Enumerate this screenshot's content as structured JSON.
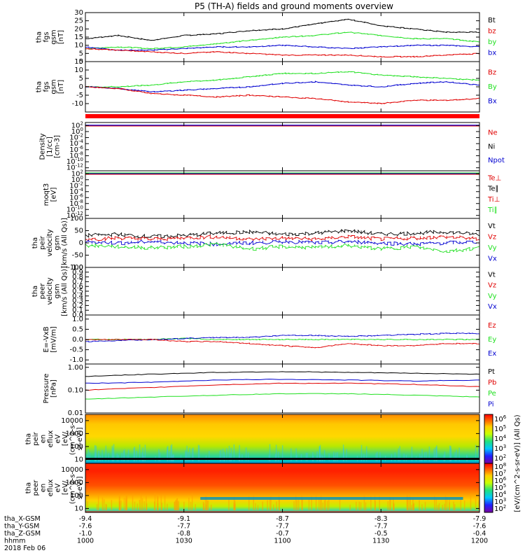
{
  "title": "P5 (TH-A) fields and ground moments overview",
  "chart_data": {
    "type": "line",
    "panels": [
      {
        "id": "fgs_mag",
        "ylabel": [
          "tha",
          "fgs",
          "gsm",
          "[nT]"
        ],
        "ylim": [
          0,
          30
        ],
        "yticks": [
          "0",
          "5",
          "10",
          "15",
          "20",
          "25",
          "30"
        ],
        "legend": [
          {
            "name": "Bt",
            "color": "#000000"
          },
          {
            "name": "bz",
            "color": "#e00000"
          },
          {
            "name": "by",
            "color": "#20e020"
          },
          {
            "name": "bx",
            "color": "#0000d0"
          }
        ],
        "series": [
          {
            "name": "Bt",
            "color": "#000000",
            "x": [
              1000,
              1010,
              1020,
              1030,
              1040,
              1050,
              1100,
              1110,
              1120,
              1130,
              1140,
              1150,
              1200
            ],
            "values": [
              14,
              16,
              13,
              16,
              17,
              19,
              20,
              23,
              26,
              22,
              20,
              18,
              18
            ]
          },
          {
            "name": "by",
            "color": "#20e020",
            "x": [
              1000,
              1010,
              1020,
              1030,
              1040,
              1050,
              1100,
              1110,
              1120,
              1130,
              1140,
              1150,
              1200
            ],
            "values": [
              8,
              9,
              8,
              9,
              11,
              13,
              15,
              16,
              18,
              16,
              14,
              14,
              12
            ]
          },
          {
            "name": "bx",
            "color": "#0000d0",
            "x": [
              1000,
              1010,
              1020,
              1030,
              1040,
              1050,
              1100,
              1110,
              1120,
              1130,
              1140,
              1150,
              1200
            ],
            "values": [
              9,
              7,
              7,
              8,
              9,
              9,
              10,
              9,
              8,
              9,
              10,
              10,
              9
            ]
          },
          {
            "name": "bz",
            "color": "#e00000",
            "x": [
              1000,
              1010,
              1020,
              1030,
              1040,
              1050,
              1100,
              1110,
              1120,
              1130,
              1140,
              1150,
              1200
            ],
            "values": [
              8,
              7,
              6,
              5,
              6,
              5,
              4,
              4,
              4,
              3,
              3,
              4,
              5
            ]
          }
        ]
      },
      {
        "id": "fgs_gsm",
        "ylabel": [
          "tha",
          "fgs",
          "gsm",
          "[nT]"
        ],
        "ylim": [
          -15,
          15
        ],
        "yticks": [
          "-10",
          "-5",
          "0",
          "5",
          "10",
          "15"
        ],
        "legend": [
          {
            "name": "Bz",
            "color": "#e00000"
          },
          {
            "name": "By",
            "color": "#20e020"
          },
          {
            "name": "Bx",
            "color": "#0000d0"
          }
        ],
        "series": [
          {
            "name": "By",
            "color": "#20e020",
            "x": [
              1000,
              1010,
              1020,
              1030,
              1040,
              1050,
              1100,
              1110,
              1120,
              1130,
              1140,
              1150,
              1200
            ],
            "values": [
              0,
              0,
              1,
              3,
              4,
              6,
              8,
              8,
              9,
              7,
              6,
              5,
              4
            ]
          },
          {
            "name": "Bx",
            "color": "#0000d0",
            "x": [
              1000,
              1010,
              1020,
              1030,
              1040,
              1050,
              1100,
              1110,
              1120,
              1130,
              1140,
              1150,
              1200
            ],
            "values": [
              0,
              -1,
              -3,
              -2,
              -1,
              0,
              2,
              3,
              1,
              0,
              2,
              3,
              1
            ]
          },
          {
            "name": "Bz",
            "color": "#e00000",
            "x": [
              1000,
              1010,
              1020,
              1030,
              1040,
              1050,
              1100,
              1110,
              1120,
              1130,
              1140,
              1150,
              1200
            ],
            "values": [
              0,
              -1,
              -4,
              -5,
              -6,
              -5,
              -6,
              -7,
              -9,
              -10,
              -8,
              -8,
              -7
            ]
          }
        ]
      },
      {
        "id": "density",
        "ylabel": [
          "Density",
          "[1/cc]",
          "[cm-3]"
        ],
        "log": true,
        "ylim": [
          1e-13,
          1000.0
        ],
        "yticks": [
          "10^2",
          "10^0",
          "10^-2",
          "10^-4",
          "10^-6",
          "10^-8",
          "10^-10",
          "10^-12"
        ],
        "legend": [
          {
            "name": "Ne",
            "color": "#e00000"
          },
          {
            "name": "Ni",
            "color": "#000000"
          },
          {
            "name": "Npot",
            "color": "#0000d0"
          }
        ]
      },
      {
        "id": "temperature",
        "ylabel": [
          "moqt3",
          "[eV]"
        ],
        "log": true,
        "ylim": [
          1e-13,
          1000.0
        ],
        "yticks": [
          "10^2",
          "10^0",
          "10^-2",
          "10^-4",
          "10^-6",
          "10^-8",
          "10^-10",
          "10^-12"
        ],
        "legend": [
          {
            "name": "Te⊥",
            "color": "#e00000"
          },
          {
            "name": "Te∥",
            "color": "#000000"
          },
          {
            "name": "Ti⊥",
            "color": "#e00000"
          },
          {
            "name": "Ti∥",
            "color": "#20e020"
          }
        ]
      },
      {
        "id": "peir_velocity",
        "ylabel": [
          "tha",
          "peir",
          "velocity",
          "gsm",
          "[km/s (All Qs)]"
        ],
        "ylim": [
          -100,
          100
        ],
        "yticks": [
          "-100",
          "-50",
          "0",
          "50",
          "100"
        ],
        "legend": [
          {
            "name": "Vt",
            "color": "#000000"
          },
          {
            "name": "Vz",
            "color": "#e00000"
          },
          {
            "name": "Vy",
            "color": "#20e020"
          },
          {
            "name": "Vx",
            "color": "#0000d0"
          }
        ],
        "series": [
          {
            "name": "Vt",
            "color": "#000000",
            "x": [
              1000,
              1010,
              1020,
              1030,
              1040,
              1050,
              1100,
              1110,
              1120,
              1130,
              1140,
              1150,
              1200
            ],
            "values": [
              30,
              35,
              25,
              30,
              40,
              45,
              35,
              40,
              50,
              35,
              40,
              45,
              35
            ]
          },
          {
            "name": "Vz",
            "color": "#e00000",
            "x": [
              1000,
              1010,
              1020,
              1030,
              1040,
              1050,
              1100,
              1110,
              1120,
              1130,
              1140,
              1150,
              1200
            ],
            "values": [
              15,
              20,
              15,
              20,
              25,
              15,
              20,
              15,
              25,
              15,
              20,
              25,
              15
            ]
          },
          {
            "name": "Vx",
            "color": "#0000d0",
            "x": [
              1000,
              1010,
              1020,
              1030,
              1040,
              1050,
              1100,
              1110,
              1120,
              1130,
              1140,
              1150,
              1200
            ],
            "values": [
              5,
              0,
              5,
              0,
              -5,
              0,
              5,
              0,
              5,
              0,
              -5,
              0,
              5
            ]
          },
          {
            "name": "Vy",
            "color": "#20e020",
            "x": [
              1000,
              1010,
              1020,
              1030,
              1040,
              1050,
              1100,
              1110,
              1120,
              1130,
              1140,
              1150,
              1200
            ],
            "values": [
              -10,
              -15,
              -20,
              -15,
              -5,
              -25,
              -15,
              -20,
              -10,
              -25,
              -15,
              -35,
              -20
            ]
          }
        ]
      },
      {
        "id": "peer_velocity",
        "ylabel": [
          "tha",
          "peer",
          "velocity",
          "gsm",
          "[km/s (All Qs)]"
        ],
        "ylim": [
          0,
          1
        ],
        "yticks": [
          "0.0",
          "0.1",
          "0.2",
          "0.3",
          "0.4",
          "0.5",
          "0.6",
          "0.7",
          "0.8",
          "0.9",
          "1.0"
        ],
        "legend": [
          {
            "name": "Vt",
            "color": "#000000"
          },
          {
            "name": "Vz",
            "color": "#e00000"
          },
          {
            "name": "Vy",
            "color": "#20e020"
          },
          {
            "name": "Vx",
            "color": "#0000d0"
          }
        ]
      },
      {
        "id": "e_field",
        "ylabel": [
          "E=-VxB",
          "[mV/m]"
        ],
        "ylim": [
          -1.2,
          1.2
        ],
        "yticks": [
          "-1.0",
          "-0.5",
          "0.0",
          "0.5",
          "1.0"
        ],
        "legend": [
          {
            "name": "Ez",
            "color": "#e00000"
          },
          {
            "name": "Ey",
            "color": "#20e020"
          },
          {
            "name": "Ex",
            "color": "#0000d0"
          }
        ],
        "series": [
          {
            "name": "Ey",
            "color": "#20e020",
            "x": [
              1000,
              1010,
              1020,
              1030,
              1040,
              1050,
              1100,
              1110,
              1120,
              1130,
              1140,
              1150,
              1200
            ],
            "values": [
              0,
              0,
              0,
              0.05,
              0,
              0,
              0,
              0,
              0,
              0,
              0,
              0,
              0
            ]
          },
          {
            "name": "Ex",
            "color": "#0000d0",
            "x": [
              1000,
              1010,
              1020,
              1030,
              1040,
              1050,
              1100,
              1110,
              1120,
              1130,
              1140,
              1150,
              1200
            ],
            "values": [
              -0.1,
              -0.05,
              0,
              0.05,
              0.1,
              0.1,
              0.2,
              0.2,
              0.15,
              0.2,
              0.25,
              0.3,
              0.3
            ]
          },
          {
            "name": "Ez",
            "color": "#e00000",
            "x": [
              1000,
              1010,
              1020,
              1030,
              1040,
              1050,
              1100,
              1110,
              1120,
              1130,
              1140,
              1150,
              1200
            ],
            "values": [
              0,
              0,
              0,
              -0.1,
              -0.1,
              -0.2,
              -0.3,
              -0.4,
              -0.2,
              -0.3,
              -0.3,
              -0.2,
              -0.2
            ]
          }
        ]
      },
      {
        "id": "pressure",
        "ylabel": [
          "Pressure",
          "[nPa]"
        ],
        "log": true,
        "ylim": [
          0.01,
          1.4
        ],
        "yticks": [
          "0.01",
          "0.10",
          "1.00"
        ],
        "legend": [
          {
            "name": "Pt",
            "color": "#000000"
          },
          {
            "name": "Pb",
            "color": "#e00000"
          },
          {
            "name": "Pe",
            "color": "#20e020"
          },
          {
            "name": "Pi",
            "color": "#0000d0"
          }
        ],
        "series": [
          {
            "name": "Pt",
            "color": "#000000",
            "x": [
              1000,
              1020,
              1040,
              1100,
              1120,
              1140,
              1200
            ],
            "values": [
              0.4,
              0.5,
              0.6,
              0.65,
              0.6,
              0.55,
              0.5
            ]
          },
          {
            "name": "Pi",
            "color": "#0000d0",
            "x": [
              1000,
              1020,
              1040,
              1100,
              1120,
              1140,
              1200
            ],
            "values": [
              0.2,
              0.22,
              0.28,
              0.3,
              0.28,
              0.25,
              0.28
            ]
          },
          {
            "name": "Pb",
            "color": "#e00000",
            "x": [
              1000,
              1020,
              1040,
              1100,
              1120,
              1140,
              1200
            ],
            "values": [
              0.1,
              0.13,
              0.17,
              0.2,
              0.2,
              0.18,
              0.14
            ]
          },
          {
            "name": "Pe",
            "color": "#20e020",
            "x": [
              1000,
              1020,
              1040,
              1100,
              1120,
              1140,
              1200
            ],
            "values": [
              0.04,
              0.05,
              0.06,
              0.07,
              0.07,
              0.06,
              0.05
            ]
          }
        ]
      },
      {
        "id": "peir_spec",
        "type": "heatmap",
        "ylabel": [
          "tha",
          "peir",
          "en",
          "eflux",
          "eV",
          "[eV/",
          "(cm^2-s-",
          "sr-eV)]"
        ],
        "log": true,
        "ylim": [
          5,
          30000
        ],
        "yticks": [
          "10",
          "100",
          "1000",
          "10000"
        ],
        "colorbar": {
          "ticks": [
            "10^2",
            "10^3",
            "10^4",
            "10^5",
            "10^6"
          ]
        }
      },
      {
        "id": "peer_spec",
        "type": "heatmap",
        "ylabel": [
          "tha",
          "peer",
          "en",
          "eflux",
          "eV",
          "[eV/",
          "(cm^2-s-",
          "sr-eV)]"
        ],
        "log": true,
        "ylim": [
          5,
          30000
        ],
        "yticks": [
          "10",
          "100",
          "1000",
          "10000"
        ],
        "colorbar": {
          "ticks": [
            "10^2",
            "10^3",
            "10^4",
            "10^5",
            "10^6",
            "10^7",
            "10^8"
          ]
        }
      }
    ],
    "colorbar_label": "[eV/(cm^2-s-sr-eV)] (All Qs)",
    "x_axis": {
      "rows": [
        {
          "label": "tha_X-GSM",
          "values": [
            "-9.4",
            "-9.1",
            "-8.7",
            "-8.3",
            "-7.9"
          ]
        },
        {
          "label": "tha_Y-GSM",
          "values": [
            "-7.6",
            "-7.7",
            "-7.7",
            "-7.7",
            "-7.6"
          ]
        },
        {
          "label": "tha_Z-GSM",
          "values": [
            "-1.0",
            "-0.8",
            "-0.7",
            "-0.5",
            "-0.4"
          ]
        },
        {
          "label": "hhmm",
          "values": [
            "1000",
            "1030",
            "1100",
            "1130",
            "1200"
          ]
        }
      ],
      "date": "2018 Feb 06"
    }
  }
}
